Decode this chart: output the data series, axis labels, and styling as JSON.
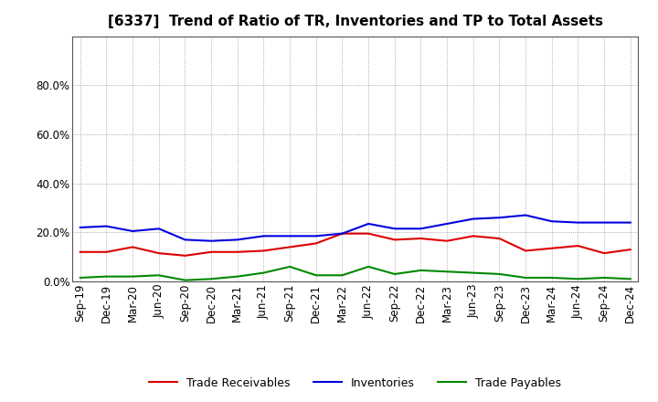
{
  "title": "[6337]  Trend of Ratio of TR, Inventories and TP to Total Assets",
  "labels": [
    "Sep-19",
    "Dec-19",
    "Mar-20",
    "Jun-20",
    "Sep-20",
    "Dec-20",
    "Mar-21",
    "Jun-21",
    "Sep-21",
    "Dec-21",
    "Mar-22",
    "Jun-22",
    "Sep-22",
    "Dec-22",
    "Mar-23",
    "Jun-23",
    "Sep-23",
    "Dec-23",
    "Mar-24",
    "Jun-24",
    "Sep-24",
    "Dec-24"
  ],
  "trade_receivables": [
    0.12,
    0.12,
    0.14,
    0.115,
    0.105,
    0.12,
    0.12,
    0.125,
    0.14,
    0.155,
    0.195,
    0.195,
    0.17,
    0.175,
    0.165,
    0.185,
    0.175,
    0.125,
    0.135,
    0.145,
    0.115,
    0.13
  ],
  "inventories": [
    0.22,
    0.225,
    0.205,
    0.215,
    0.17,
    0.165,
    0.17,
    0.185,
    0.185,
    0.185,
    0.195,
    0.235,
    0.215,
    0.215,
    0.235,
    0.255,
    0.26,
    0.27,
    0.245,
    0.24,
    0.24,
    0.24
  ],
  "trade_payables": [
    0.015,
    0.02,
    0.02,
    0.025,
    0.005,
    0.01,
    0.02,
    0.035,
    0.06,
    0.025,
    0.025,
    0.06,
    0.03,
    0.045,
    0.04,
    0.035,
    0.03,
    0.015,
    0.015,
    0.01,
    0.015,
    0.01
  ],
  "tr_color": "#dd0000",
  "inv_color": "#0000dd",
  "tp_color": "#008800",
  "legend_tr": "Trade Receivables",
  "legend_inv": "Inventories",
  "legend_tp": "Trade Payables",
  "background_color": "#ffffff",
  "grid_color": "#888888",
  "line_width": 1.5,
  "title_fontsize": 11,
  "tick_fontsize": 8.5,
  "ytick_vals": [
    0.0,
    0.2,
    0.4,
    0.6,
    0.8
  ],
  "ytick_labels": [
    "0.0%",
    "20.0%",
    "40.0%",
    "60.0%",
    "80.0%"
  ]
}
